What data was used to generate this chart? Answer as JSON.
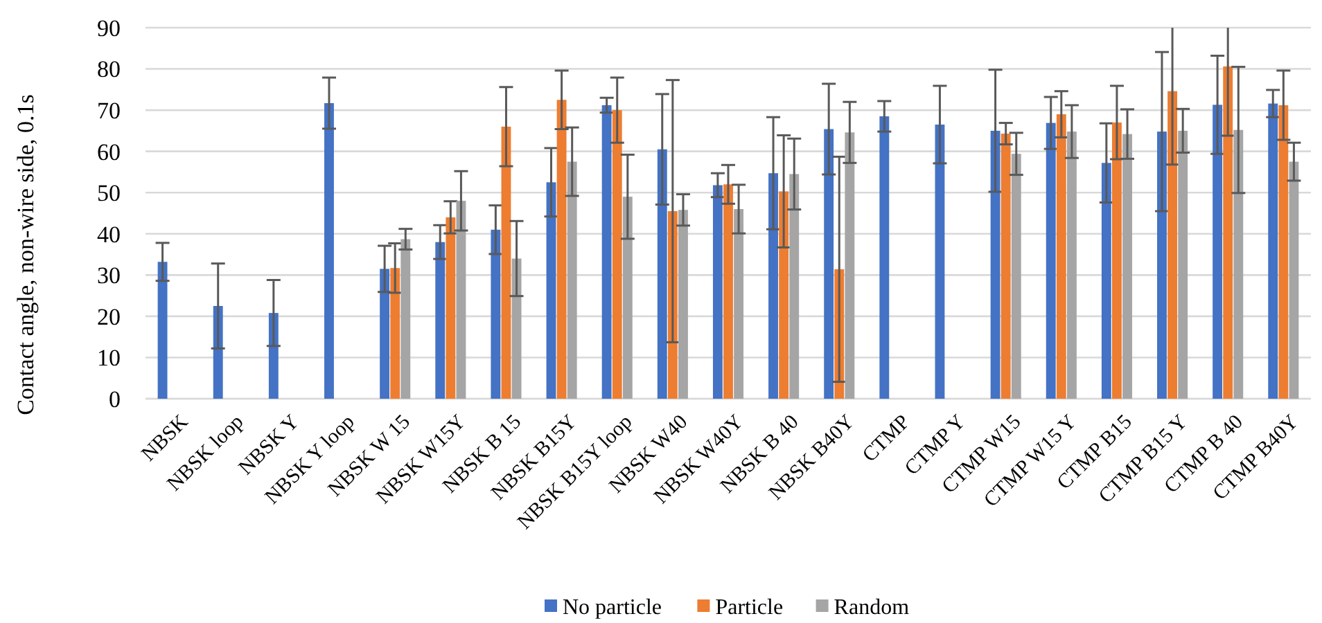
{
  "chart_data": {
    "type": "bar",
    "ylabel": "Contact angle, non-wire side, 0.1s",
    "categories": [
      "NBSK",
      "NBSK loop",
      "NBSK Y",
      "NBSK Y loop",
      "NBSK W 15",
      "NBSK W15Y",
      "NBSK B 15",
      "NBSK B15Y",
      "NBSK B15Y loop",
      "NBSK W40",
      "NBSK W40Y",
      "NBSK B 40",
      "NBSK B40Y",
      "CTMP",
      "CTMP Y",
      "CTMP W15",
      "CTMP W15 Y",
      "CTMP B15",
      "CTMP B15 Y",
      "CTMP B 40",
      "CTMP B40Y"
    ],
    "series": [
      {
        "name": "No particle",
        "color": "#4472c4",
        "values": [
          33.2,
          22.5,
          20.8,
          71.7,
          31.5,
          38,
          41,
          52.5,
          71.2,
          60.5,
          51.8,
          54.7,
          65.4,
          68.5,
          66.5,
          65,
          66.9,
          57.2,
          64.8,
          71.3,
          71.6
        ],
        "errors": [
          4.6,
          10.3,
          8,
          6.2,
          5.6,
          4.1,
          5.9,
          8.3,
          1.8,
          13.4,
          2.9,
          13.6,
          11,
          3.7,
          9.4,
          14.8,
          6.3,
          9.6,
          19.3,
          11.9,
          3.3
        ]
      },
      {
        "name": "Particle",
        "color": "#ed7d31",
        "values": [
          null,
          null,
          null,
          null,
          31.7,
          44,
          66,
          72.5,
          70,
          45.5,
          52,
          50.3,
          31.4,
          null,
          null,
          64.3,
          69,
          67,
          74.6,
          80.6,
          71.2
        ],
        "errors": [
          null,
          null,
          null,
          null,
          6,
          3.9,
          9.6,
          7.1,
          7.9,
          31.8,
          4.7,
          13.6,
          27.3,
          null,
          null,
          2.6,
          5.6,
          8.9,
          [
            56.8,
            90
          ],
          [
            63.8,
            90
          ],
          8.4
        ]
      },
      {
        "name": "Random",
        "color": "#a5a5a5",
        "values": [
          null,
          null,
          null,
          null,
          38.7,
          48,
          34,
          57.5,
          49,
          45.8,
          46,
          54.5,
          64.6,
          null,
          null,
          59.4,
          64.8,
          64.2,
          65,
          65.2,
          57.5
        ],
        "errors": [
          null,
          null,
          null,
          null,
          2.5,
          7.2,
          9.1,
          8.3,
          10.2,
          3.8,
          5.9,
          8.6,
          7.4,
          null,
          null,
          5.1,
          6.4,
          6,
          5.3,
          15.3,
          4.6
        ]
      }
    ],
    "ylim": [
      0,
      90
    ],
    "yticks": [
      0,
      10,
      20,
      30,
      40,
      50,
      60,
      70,
      80,
      90
    ],
    "grid": "y",
    "legend": "bottom"
  }
}
